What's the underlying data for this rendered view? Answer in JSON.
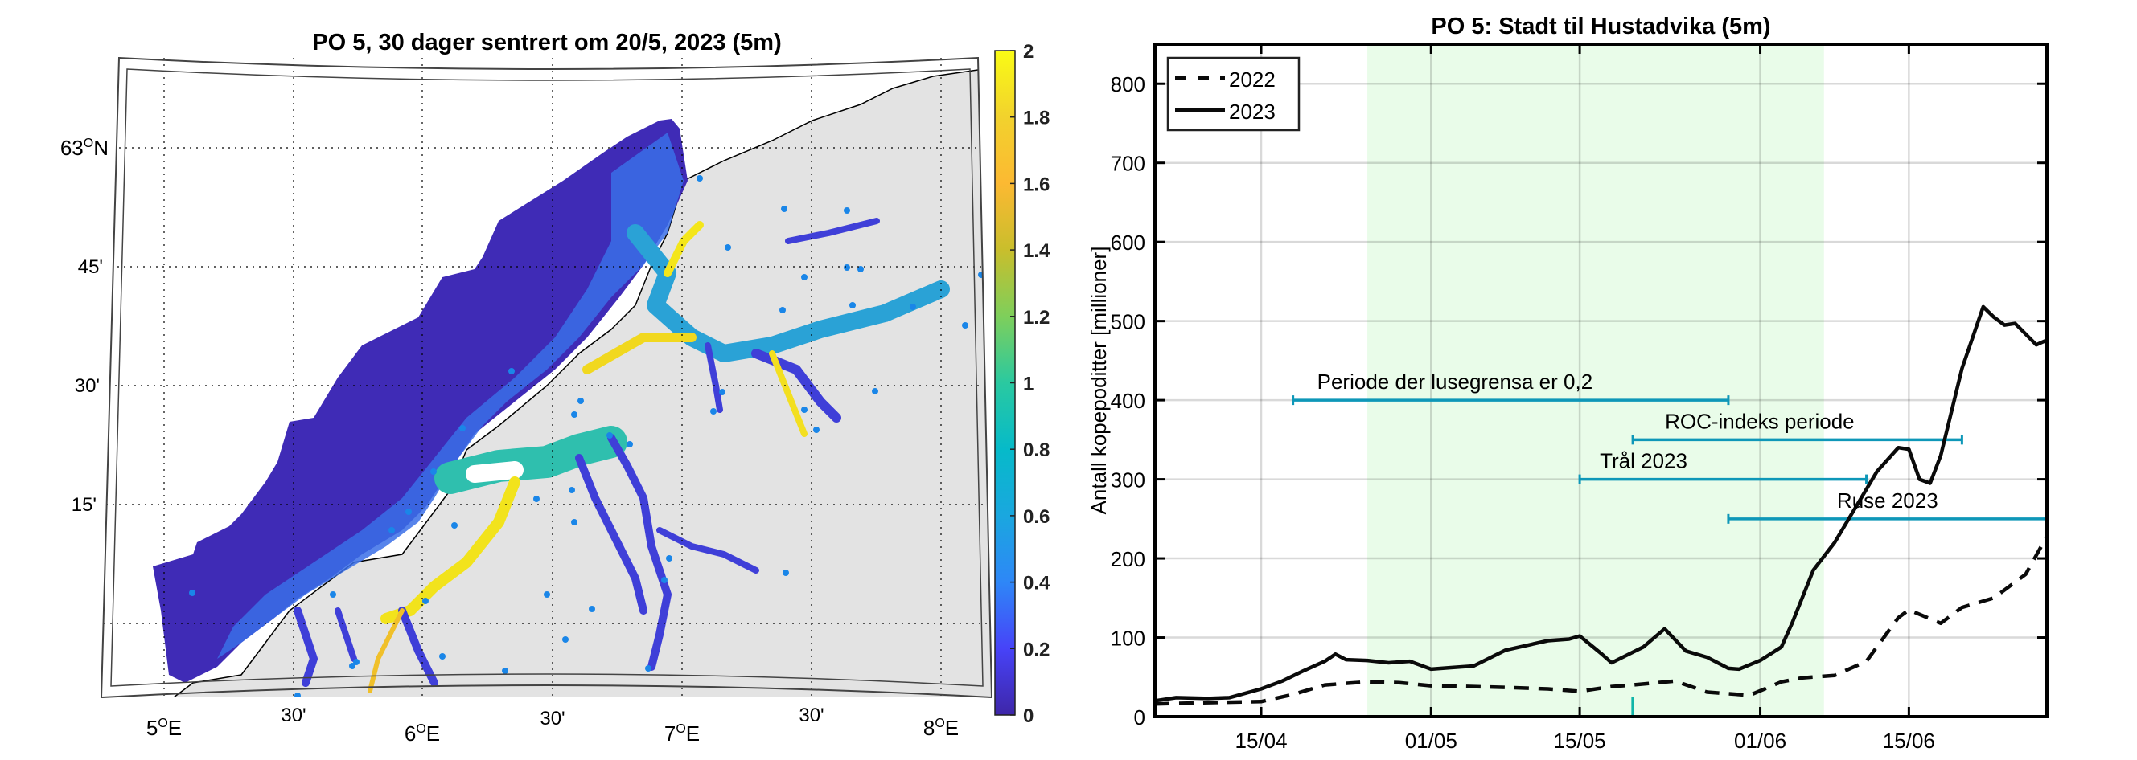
{
  "chart_data": [
    {
      "type": "heatmap",
      "title": "PO 5, 30 dager sentrert om 20/5, 2023 (5m)",
      "description": "Map of mean salmon lice copepodite concentration along the coast, Stadt to Hustadvika",
      "colorbar": {
        "min": 0,
        "max": 2,
        "ticks": [
          "0",
          "0.2",
          "0.4",
          "0.6",
          "0.8",
          "1",
          "1.2",
          "1.4",
          "1.6",
          "1.8",
          "2"
        ],
        "colormap": [
          "#3e26a8",
          "#4743f8",
          "#2e87f7",
          "#1aa7df",
          "#06bac9",
          "#2ac9a0",
          "#7ecf5b",
          "#c9be2c",
          "#fcb932",
          "#f2d22d",
          "#f9fb15"
        ]
      },
      "x_ticks": [
        {
          "label_main": "5",
          "label_sup": "O",
          "label_suffix": "E"
        },
        {
          "label_main": "30'",
          "label_sup": "",
          "label_suffix": ""
        },
        {
          "label_main": "6",
          "label_sup": "O",
          "label_suffix": "E"
        },
        {
          "label_main": "30'",
          "label_sup": "",
          "label_suffix": ""
        },
        {
          "label_main": "7",
          "label_sup": "O",
          "label_suffix": "E"
        },
        {
          "label_main": "30'",
          "label_sup": "",
          "label_suffix": ""
        },
        {
          "label_main": "8",
          "label_sup": "O",
          "label_suffix": "E"
        }
      ],
      "y_ticks": [
        {
          "label_main": "63",
          "label_sup": "O",
          "label_suffix": "N"
        },
        {
          "label_main": "45'",
          "label_sup": "",
          "label_suffix": ""
        },
        {
          "label_main": "30'",
          "label_sup": "",
          "label_suffix": ""
        },
        {
          "label_main": "15'",
          "label_sup": "",
          "label_suffix": ""
        }
      ],
      "lon_range": [
        4.75,
        8.2
      ],
      "lat_range": [
        62.02,
        63.15
      ],
      "grid": true,
      "colors": {
        "land": "#e3e3e3",
        "ocean_low": "#3e26a8",
        "farm_marker": "#1a86e8"
      }
    },
    {
      "type": "line",
      "title": "PO 5: Stadt til Hustadvika (5m)",
      "xlabel": "",
      "ylabel": "Antall kopepoditter [millioner]",
      "x_range": [
        "05/04",
        "28/06"
      ],
      "x_ticks": [
        "15/04",
        "01/05",
        "15/05",
        "01/06",
        "15/06"
      ],
      "ylim": [
        0,
        850
      ],
      "y_ticks": [
        0,
        100,
        200,
        300,
        400,
        500,
        600,
        700,
        800
      ],
      "grid": true,
      "legend": {
        "position": "top-left",
        "entries": [
          "2022",
          "2023"
        ]
      },
      "shaded_period": {
        "from": "25/04",
        "to": "07/06",
        "color": "#e9fce9"
      },
      "marker_date": {
        "date": "20/05",
        "color": "#10b5a8"
      },
      "series": [
        {
          "name": "2022",
          "style": "dashed",
          "x": [
            "05/04",
            "08/04",
            "11/04",
            "15/04",
            "18/04",
            "21/04",
            "25/04",
            "28/04",
            "01/05",
            "05/05",
            "08/05",
            "12/05",
            "15/05",
            "18/05",
            "20/05",
            "24/05",
            "27/05",
            "31/05",
            "03/06",
            "05/06",
            "08/06",
            "11/06",
            "14/06",
            "15/06",
            "18/06",
            "20/06",
            "23/06",
            "26/06",
            "28/06"
          ],
          "y": [
            16,
            17,
            18,
            19,
            28,
            40,
            44,
            43,
            39,
            38,
            37,
            35,
            32,
            38,
            40,
            45,
            31,
            27,
            44,
            49,
            52,
            70,
            125,
            135,
            118,
            138,
            150,
            180,
            228
          ]
        },
        {
          "name": "2023",
          "style": "solid",
          "x": [
            "05/04",
            "07/04",
            "10/04",
            "12/04",
            "15/04",
            "17/04",
            "19/04",
            "21/04",
            "22/04",
            "23/04",
            "25/04",
            "27/04",
            "29/04",
            "01/05",
            "03/05",
            "05/05",
            "08/05",
            "10/05",
            "12/05",
            "14/05",
            "15/05",
            "17/05",
            "18/05",
            "21/05",
            "23/05",
            "25/05",
            "27/05",
            "29/05",
            "30/05",
            "01/06",
            "03/06",
            "04/06",
            "06/06",
            "08/06",
            "10/06",
            "12/06",
            "14/06",
            "15/06",
            "16/06",
            "17/06",
            "18/06",
            "20/06",
            "22/06",
            "23/06",
            "24/06",
            "25/06",
            "27/06",
            "28/06"
          ],
          "y": [
            20,
            24,
            23,
            24,
            35,
            45,
            58,
            70,
            79,
            72,
            71,
            68,
            70,
            60,
            62,
            64,
            84,
            90,
            96,
            98,
            102,
            80,
            68,
            88,
            111,
            83,
            75,
            61,
            60,
            71,
            88,
            118,
            185,
            220,
            265,
            310,
            340,
            338,
            300,
            295,
            330,
            440,
            518,
            505,
            495,
            497,
            470,
            476
          ]
        }
      ],
      "annotations": [
        {
          "label": "Periode der lusegrensa er 0,2",
          "from": "18/04",
          "to": "29/05",
          "y": 400,
          "color": "#0e97b8"
        },
        {
          "label": "ROC-indeks periode",
          "from": "20/05",
          "to": "20/06",
          "y": 350,
          "color": "#0e97b8"
        },
        {
          "label": "Trål 2023",
          "from": "15/05",
          "to": "11/06",
          "y": 300,
          "color": "#0e97b8"
        },
        {
          "label": "Ruse 2023",
          "from": "29/05",
          "to": "28/06",
          "y": 250,
          "color": "#0e97b8"
        }
      ]
    }
  ]
}
